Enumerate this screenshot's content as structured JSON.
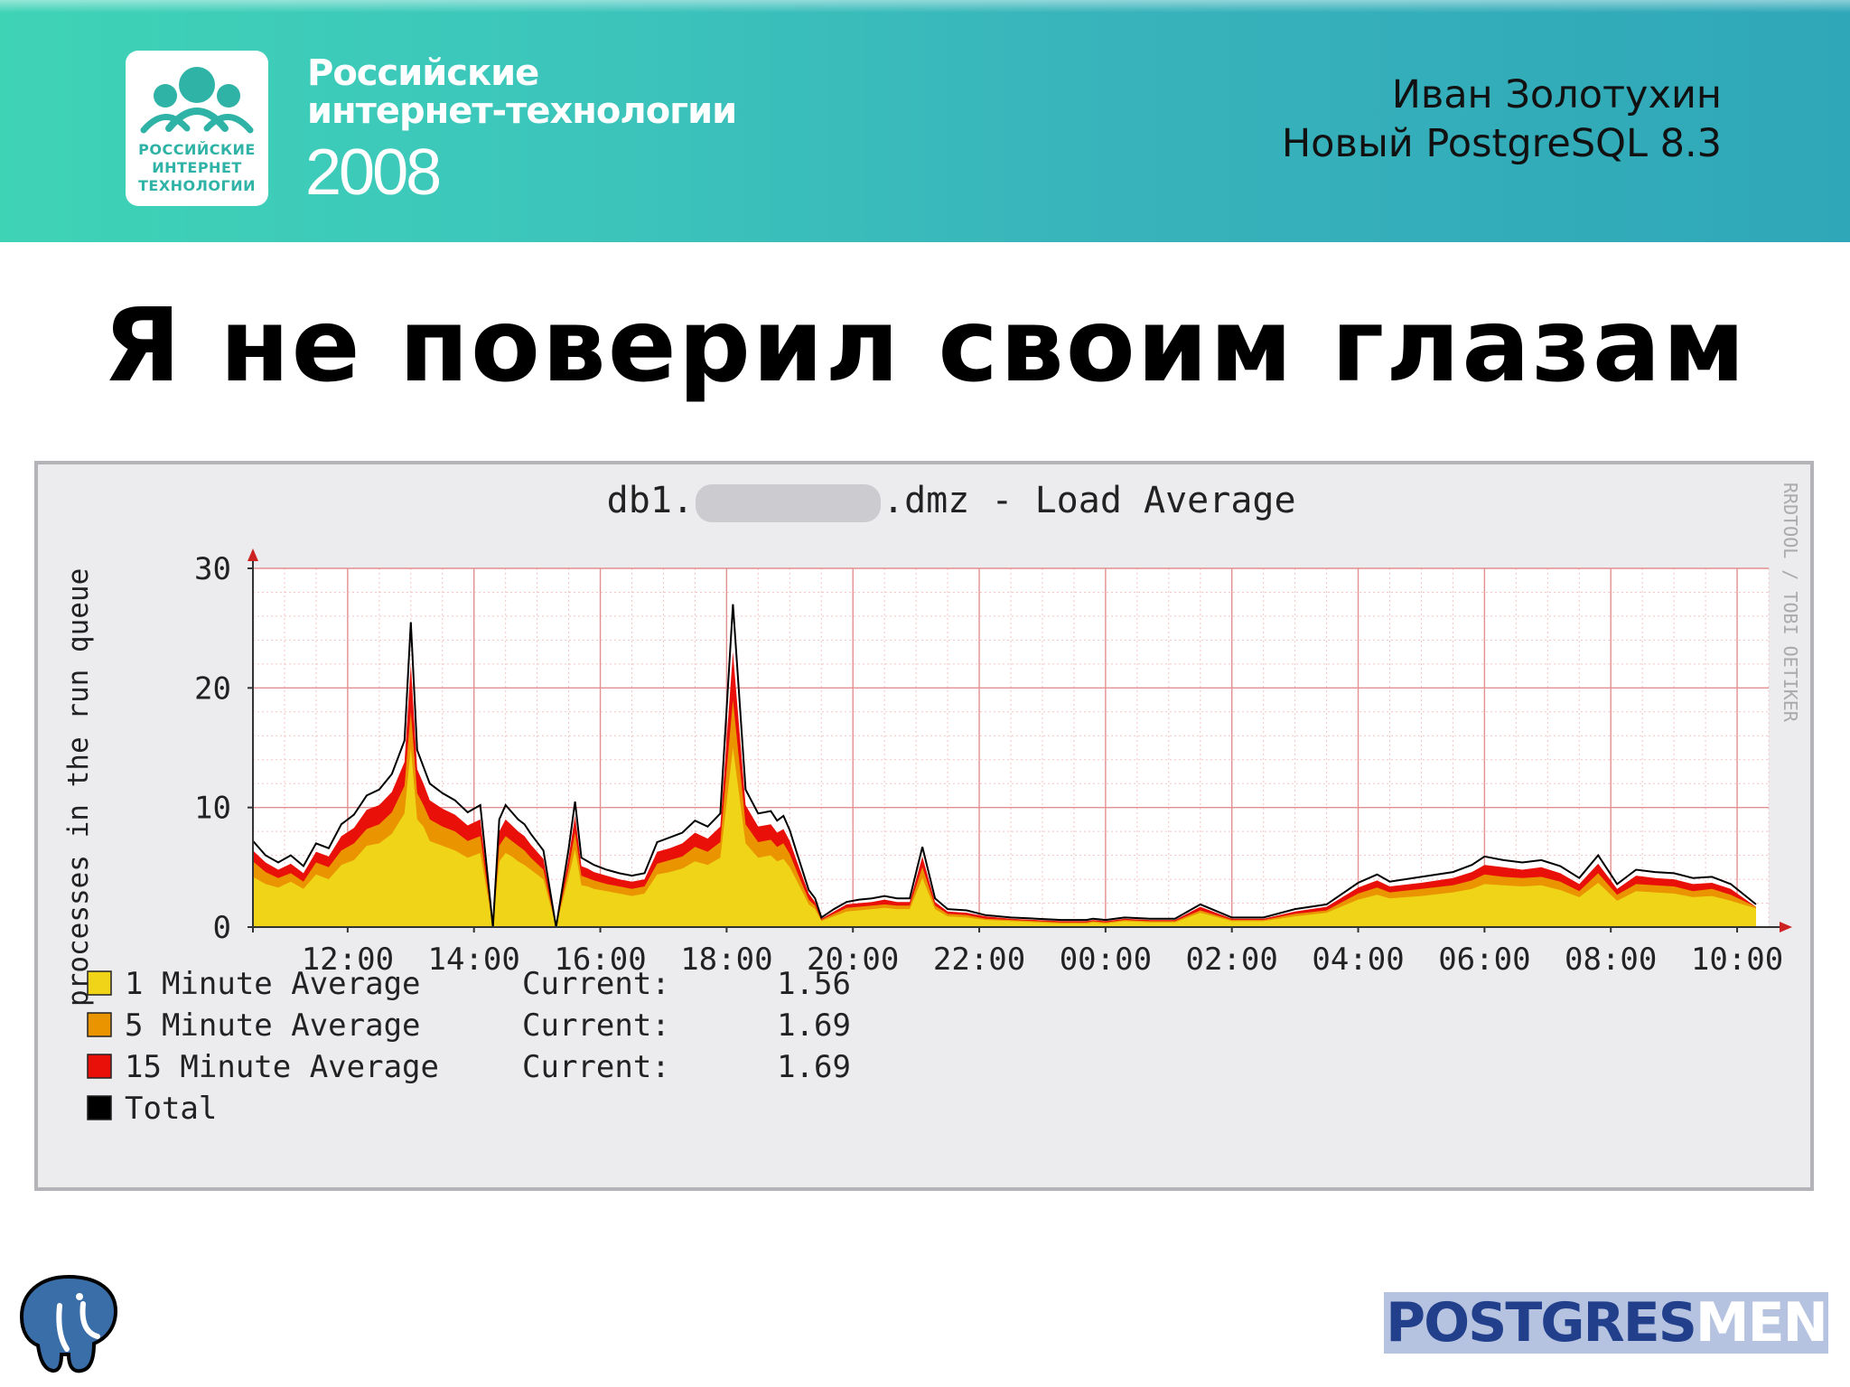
{
  "header": {
    "logo_lines": [
      "РОССИЙСКИЕ",
      "ИНТЕРНЕТ",
      "ТЕХНОЛОГИИ"
    ],
    "conference_line1": "Российские",
    "conference_line2": "интернет-технологии",
    "conference_year": "2008",
    "speaker_name": "Иван Золотухин",
    "talk_title": "Новый PostgreSQL 8.3"
  },
  "slide_title": "Я не поверил своим глазам",
  "footer": {
    "postgresmen_part1": "POSTGRES",
    "postgresmen_part2": "MEN"
  },
  "colors": {
    "header_accent": "#3cc6bb",
    "series_1min": "#f0d418",
    "series_5min": "#ea9400",
    "series_15min": "#e81008",
    "series_total": "#000000",
    "grid": "#f2b3b3",
    "arrow": "#cc2222"
  },
  "chart_data": {
    "type": "area",
    "title_prefix": "db1.",
    "title_suffix": ".dmz - Load Average",
    "ylabel": "processes in the run queue",
    "watermark": "RRDTOOL / TOBI OETIKER",
    "ylim": [
      0,
      30
    ],
    "y_ticks": [
      0,
      10,
      20,
      30
    ],
    "x_start_hours": 10.5,
    "x_end_hours": 34.5,
    "x_tick_hours": [
      12,
      14,
      16,
      18,
      20,
      22,
      24,
      26,
      28,
      30,
      32,
      34
    ],
    "x_tick_labels": [
      "12:00",
      "14:00",
      "16:00",
      "18:00",
      "20:00",
      "22:00",
      "00:00",
      "02:00",
      "04:00",
      "06:00",
      "08:00",
      "10:00"
    ],
    "grid": true,
    "legend_position": "bottom-left",
    "x": [
      10.5,
      10.7,
      10.9,
      11.1,
      11.3,
      11.5,
      11.7,
      11.9,
      12.1,
      12.3,
      12.5,
      12.7,
      12.9,
      13.0,
      13.1,
      13.2,
      13.3,
      13.5,
      13.7,
      13.9,
      14.1,
      14.3,
      14.4,
      14.5,
      14.6,
      14.7,
      14.8,
      14.9,
      15.1,
      15.3,
      15.5,
      15.6,
      15.7,
      15.8,
      15.9,
      16.1,
      16.3,
      16.5,
      16.7,
      16.9,
      17.1,
      17.3,
      17.5,
      17.7,
      17.9,
      18.1,
      18.3,
      18.5,
      18.7,
      18.8,
      18.9,
      19.0,
      19.1,
      19.3,
      19.4,
      19.5,
      19.7,
      19.9,
      20.1,
      20.3,
      20.5,
      20.7,
      20.9,
      21.1,
      21.3,
      21.5,
      21.8,
      22.1,
      22.5,
      22.9,
      23.3,
      23.7,
      23.8,
      24.0,
      24.3,
      24.7,
      25.1,
      25.5,
      26.0,
      26.5,
      27.0,
      27.5,
      28.0,
      28.3,
      28.5,
      29.0,
      29.5,
      29.8,
      30.0,
      30.3,
      30.6,
      30.9,
      31.2,
      31.5,
      31.8,
      32.1,
      32.4,
      32.7,
      33.0,
      33.3,
      33.6,
      33.9,
      34.3
    ],
    "series": [
      {
        "name": "1 Minute Average",
        "current": "1.56",
        "values": [
          4.2,
          3.6,
          3.3,
          3.8,
          3.2,
          4.4,
          4.0,
          5.2,
          5.6,
          6.8,
          7.0,
          7.8,
          9.5,
          15.0,
          9.0,
          8.4,
          7.2,
          6.8,
          6.4,
          5.8,
          6.2,
          0,
          5.5,
          6.2,
          5.9,
          5.5,
          5.2,
          4.8,
          4.0,
          0,
          4.2,
          6.5,
          3.5,
          3.4,
          3.2,
          3.0,
          2.8,
          2.6,
          2.8,
          4.4,
          4.6,
          4.9,
          5.5,
          5.2,
          5.8,
          15.0,
          7.0,
          5.8,
          6.0,
          5.5,
          5.7,
          5.0,
          4.0,
          1.9,
          1.5,
          0.5,
          0.9,
          1.3,
          1.4,
          1.5,
          1.6,
          1.5,
          1.5,
          4.1,
          1.5,
          0.9,
          0.8,
          0.6,
          0.5,
          0.4,
          0.3,
          0.3,
          0.4,
          0.3,
          0.5,
          0.4,
          0.4,
          1.2,
          0.5,
          0.5,
          0.9,
          1.2,
          2.3,
          2.7,
          2.4,
          2.6,
          2.9,
          3.2,
          3.6,
          3.5,
          3.4,
          3.5,
          3.1,
          2.5,
          3.7,
          2.2,
          3.0,
          2.9,
          2.8,
          2.5,
          2.6,
          2.2,
          1.56
        ]
      },
      {
        "name": "5 Minute Average",
        "current": "1.69",
        "values": [
          5.5,
          4.6,
          4.1,
          4.5,
          3.8,
          5.4,
          5.0,
          6.4,
          7.0,
          8.2,
          8.6,
          9.6,
          11.8,
          18.0,
          11.2,
          10.2,
          9.0,
          8.4,
          8.0,
          7.2,
          7.6,
          0,
          6.8,
          7.6,
          7.2,
          6.8,
          6.4,
          5.8,
          4.8,
          0,
          5.0,
          7.9,
          4.3,
          4.1,
          3.9,
          3.6,
          3.4,
          3.2,
          3.4,
          5.3,
          5.6,
          5.9,
          6.7,
          6.3,
          7.1,
          19.0,
          8.6,
          7.1,
          7.3,
          6.7,
          7.0,
          6.1,
          4.8,
          2.3,
          1.8,
          0.6,
          1.1,
          1.6,
          1.7,
          1.8,
          1.9,
          1.8,
          1.8,
          5.0,
          1.8,
          1.1,
          1.0,
          0.7,
          0.6,
          0.5,
          0.4,
          0.4,
          0.5,
          0.4,
          0.6,
          0.5,
          0.5,
          1.4,
          0.6,
          0.6,
          1.1,
          1.4,
          2.8,
          3.3,
          2.9,
          3.2,
          3.5,
          3.9,
          4.4,
          4.2,
          4.1,
          4.2,
          3.8,
          3.0,
          4.5,
          2.7,
          3.6,
          3.5,
          3.4,
          3.0,
          3.2,
          2.7,
          1.69
        ]
      },
      {
        "name": "15 Minute Average",
        "current": "1.69",
        "values": [
          6.4,
          5.4,
          4.8,
          5.3,
          4.5,
          6.3,
          5.9,
          7.6,
          8.3,
          9.8,
          10.2,
          11.3,
          13.8,
          22.0,
          13.2,
          12.0,
          10.6,
          9.9,
          9.4,
          8.5,
          9.0,
          0,
          8.0,
          9.0,
          8.5,
          8.0,
          7.6,
          6.9,
          5.7,
          0,
          5.9,
          9.3,
          5.1,
          4.9,
          4.6,
          4.3,
          4.0,
          3.8,
          4.0,
          6.3,
          6.6,
          7.0,
          7.9,
          7.4,
          8.4,
          23.0,
          10.2,
          8.4,
          8.6,
          7.9,
          8.2,
          7.2,
          5.7,
          2.8,
          2.1,
          0.7,
          1.3,
          1.9,
          2.0,
          2.1,
          2.3,
          2.1,
          2.1,
          5.9,
          2.1,
          1.3,
          1.2,
          0.9,
          0.7,
          0.6,
          0.5,
          0.5,
          0.6,
          0.5,
          0.7,
          0.6,
          0.6,
          1.7,
          0.7,
          0.7,
          1.3,
          1.7,
          3.3,
          3.9,
          3.4,
          3.7,
          4.1,
          4.6,
          5.2,
          5.0,
          4.8,
          5.0,
          4.5,
          3.6,
          5.3,
          3.2,
          4.3,
          4.1,
          4.0,
          3.6,
          3.7,
          3.2,
          1.69
        ]
      },
      {
        "name": "Total",
        "values": [
          7.2,
          6.0,
          5.4,
          6.0,
          5.1,
          7.0,
          6.6,
          8.6,
          9.4,
          11.0,
          11.5,
          12.8,
          15.6,
          25.5,
          14.8,
          13.4,
          12.0,
          11.2,
          10.6,
          9.6,
          10.2,
          0,
          9.0,
          10.2,
          9.6,
          9.0,
          8.6,
          7.8,
          6.4,
          0,
          6.6,
          10.5,
          5.8,
          5.5,
          5.2,
          4.8,
          4.5,
          4.3,
          4.5,
          7.1,
          7.5,
          7.9,
          8.9,
          8.4,
          9.5,
          27.0,
          11.5,
          9.5,
          9.7,
          8.9,
          9.3,
          8.1,
          6.4,
          3.1,
          2.4,
          0.8,
          1.5,
          2.1,
          2.3,
          2.4,
          2.6,
          2.4,
          2.4,
          6.7,
          2.4,
          1.5,
          1.4,
          1.0,
          0.8,
          0.7,
          0.6,
          0.6,
          0.7,
          0.6,
          0.8,
          0.7,
          0.7,
          1.9,
          0.8,
          0.8,
          1.5,
          1.9,
          3.7,
          4.4,
          3.8,
          4.2,
          4.6,
          5.2,
          5.9,
          5.6,
          5.4,
          5.6,
          5.1,
          4.1,
          6.0,
          3.6,
          4.8,
          4.6,
          4.5,
          4.1,
          4.2,
          3.6,
          1.9
        ]
      }
    ],
    "legend_current_label": "Current:"
  }
}
